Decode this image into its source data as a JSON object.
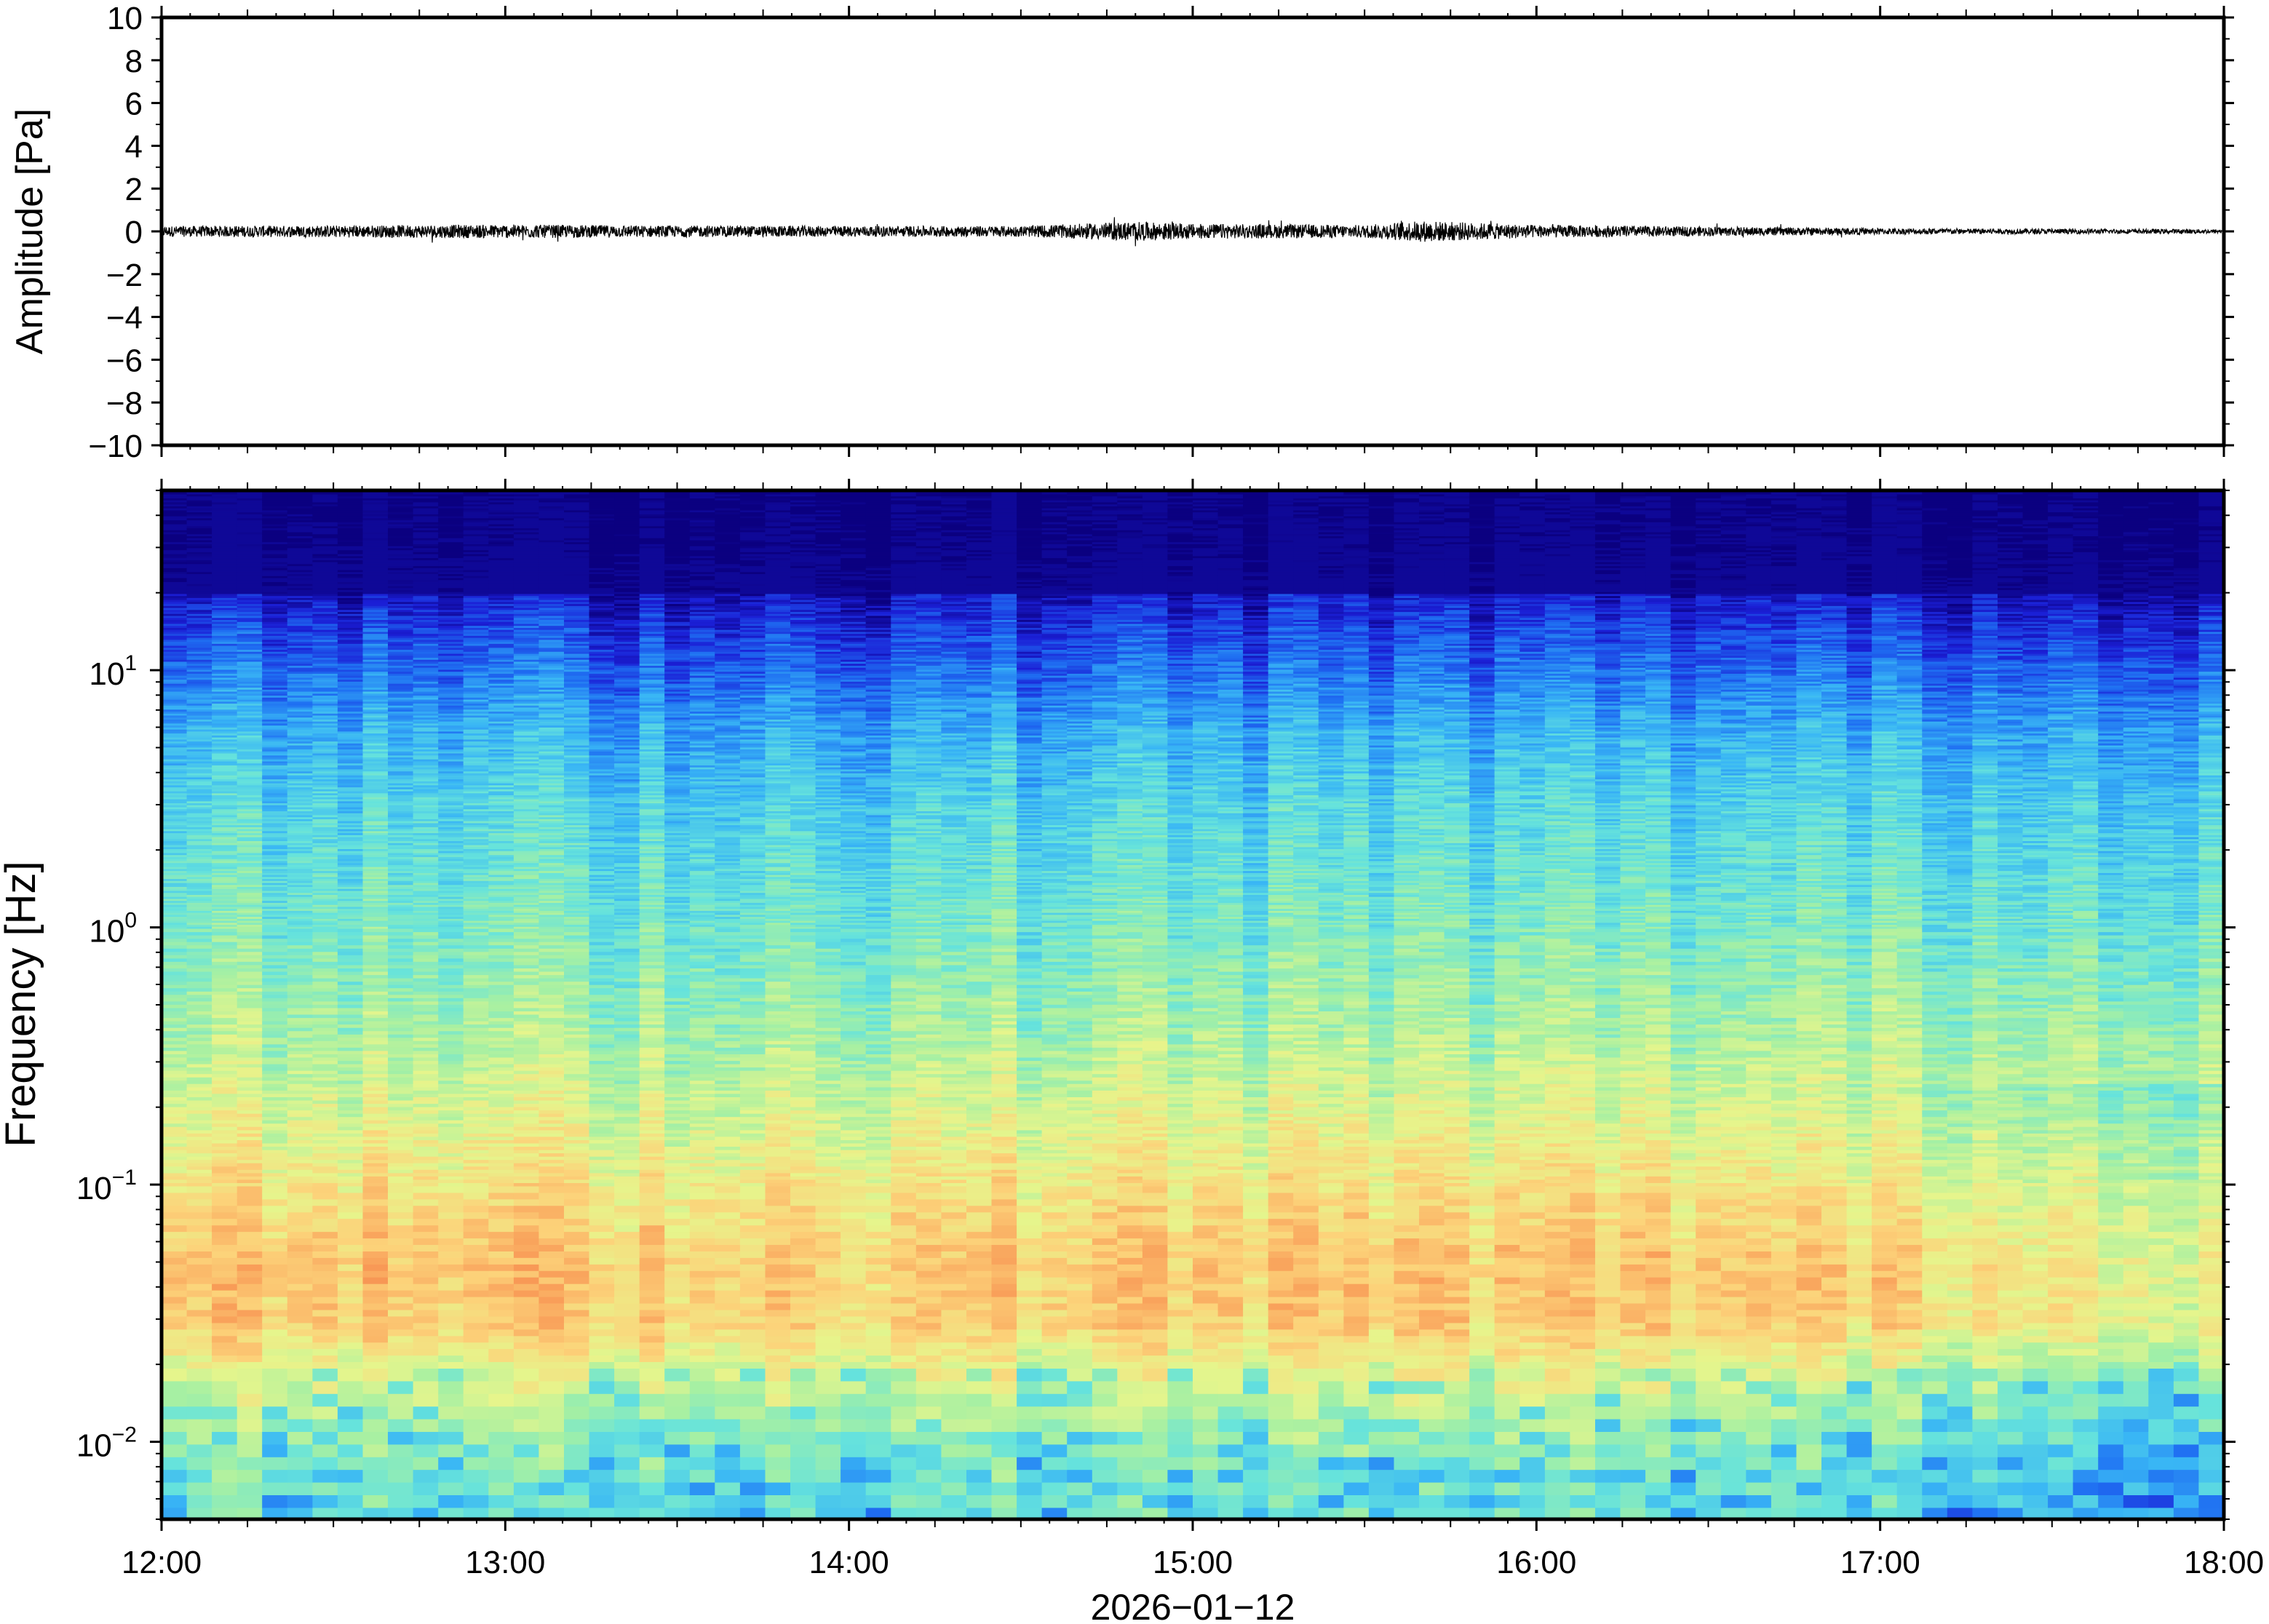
{
  "chart_data": [
    {
      "type": "line",
      "panel": "waveform",
      "ylabel": "Amplitude [Pa]",
      "ylim": [
        -10,
        10
      ],
      "y_ticks": [
        10,
        8,
        6,
        4,
        2,
        0,
        -2,
        -4,
        -6,
        -8,
        -10
      ],
      "y_tick_labels": [
        "10",
        "8",
        "6",
        "4",
        "2",
        "0",
        "−2",
        "−4",
        "−6",
        "−8",
        "−10"
      ],
      "x_range": [
        "12:00",
        "18:00"
      ],
      "trace_color": "#000000",
      "noise_envelope": {
        "x": [
          "12:00",
          "12:30",
          "13:00",
          "13:30",
          "14:00",
          "14:30",
          "14:50",
          "15:00",
          "15:30",
          "15:40",
          "16:00",
          "16:30",
          "17:00",
          "17:30",
          "18:00"
        ],
        "half_amplitude": [
          0.25,
          0.28,
          0.32,
          0.27,
          0.25,
          0.25,
          0.45,
          0.35,
          0.3,
          0.5,
          0.3,
          0.22,
          0.15,
          0.12,
          0.1
        ]
      },
      "grid": false
    },
    {
      "type": "heatmap",
      "panel": "spectrogram",
      "ylabel": "Frequency [Hz]",
      "xlabel": "2026−01−12",
      "y_scale": "log",
      "ylim": [
        0.005,
        50
      ],
      "y_tick_values": [
        10,
        1,
        0.1,
        0.01
      ],
      "y_tick_labels": [
        {
          "base": "10",
          "exp": "1"
        },
        {
          "base": "10",
          "exp": "0"
        },
        {
          "base": "10",
          "exp": "−1"
        },
        {
          "base": "10",
          "exp": "−2"
        }
      ],
      "x_tick_labels": [
        "12:00",
        "13:00",
        "14:00",
        "15:00",
        "16:00",
        "17:00",
        "18:00"
      ],
      "x_range_hours": [
        12,
        18
      ],
      "colormap": "jet",
      "colormap_stops": [
        "#0b0080",
        "#1b1fd6",
        "#1f6ff2",
        "#39b6f5",
        "#66e3dc",
        "#a6f0a3",
        "#e6f58c",
        "#fcd37a",
        "#f9a05a",
        "#ef6a3a"
      ],
      "intensity_profile": {
        "frequency_hz": [
          50,
          30,
          20,
          14,
          10,
          6,
          3,
          1.5,
          0.8,
          0.4,
          0.2,
          0.12,
          0.08,
          0.05,
          0.03,
          0.02,
          0.012,
          0.008,
          0.005
        ],
        "level": [
          0.0,
          0.02,
          0.08,
          0.16,
          0.22,
          0.32,
          0.4,
          0.45,
          0.5,
          0.56,
          0.64,
          0.7,
          0.75,
          0.8,
          0.78,
          0.66,
          0.55,
          0.48,
          0.44
        ]
      },
      "grid": false
    }
  ]
}
